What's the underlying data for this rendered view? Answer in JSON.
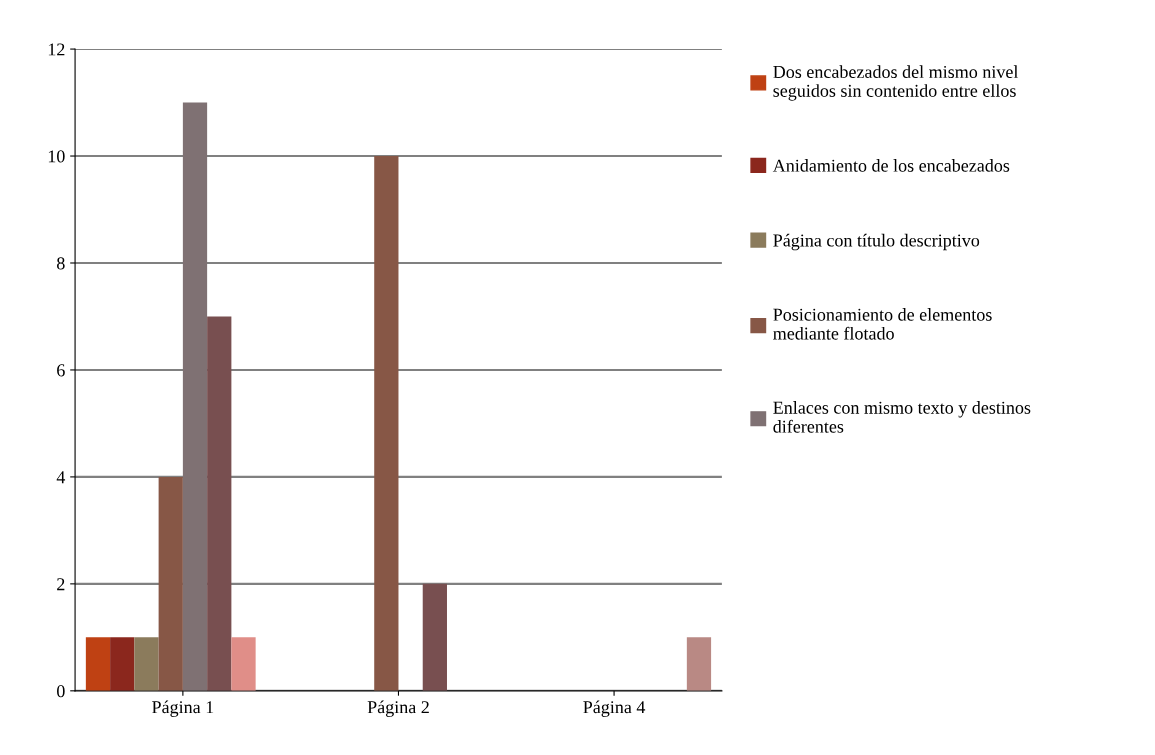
{
  "chart_data": {
    "type": "bar",
    "categories": [
      "Página 1",
      "Página 2",
      "Página 4"
    ],
    "series": [
      {
        "name": "Dos encabezados del mismo nivel\nseguidos sin contenido entre ellos",
        "color": "#bf4113",
        "values": [
          1,
          null,
          null
        ]
      },
      {
        "name": "Anidamiento de los encabezados",
        "color": "#8b271d",
        "values": [
          1,
          null,
          null
        ]
      },
      {
        "name": "Página con título descriptivo",
        "color": "#8b7b5c",
        "values": [
          1,
          null,
          null
        ]
      },
      {
        "name": "Posicionamiento de elementos\nmediante flotado",
        "color": "#875746",
        "values": [
          4,
          10,
          null
        ]
      },
      {
        "name": "Enlaces con mismo texto y destinos\ndiferentes",
        "color": "#7f7173",
        "values": [
          11,
          null,
          null
        ]
      },
      {
        "color": "#784f50",
        "values": [
          7,
          2,
          null
        ]
      },
      {
        "color": "#e08e88",
        "values": [
          1,
          null,
          null
        ]
      },
      {
        "color": "#b98984",
        "values": [
          null,
          null,
          1
        ]
      }
    ],
    "ylim": [
      0,
      12
    ],
    "yticks": [
      0,
      2,
      4,
      6,
      8,
      10,
      12
    ],
    "grid": "y",
    "legend": "right"
  }
}
